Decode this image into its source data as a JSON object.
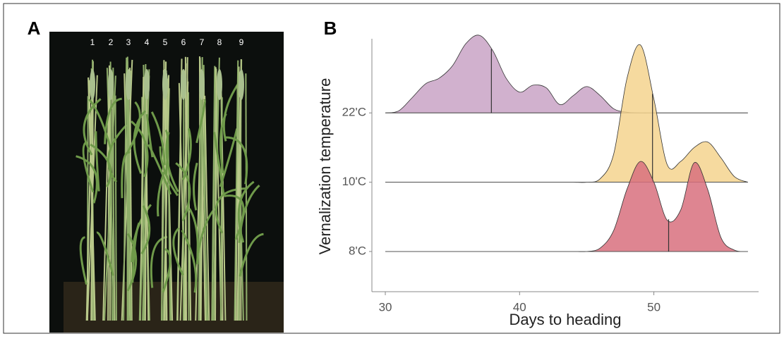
{
  "panel_a": {
    "label": "A",
    "plant_labels": [
      "1",
      "2",
      "3",
      "4",
      "5",
      "6",
      "7",
      "8",
      "9"
    ]
  },
  "chart_data": {
    "type": "ridgeline",
    "label": "B",
    "x_label": "Days to heading",
    "y_label": "Vernalization temperature",
    "x": [
      30,
      31,
      32,
      33,
      34,
      35,
      36,
      37,
      38,
      39,
      40,
      41,
      42,
      43,
      44,
      45,
      46,
      47,
      48,
      49,
      50,
      51,
      52,
      53,
      54,
      55,
      56,
      57
    ],
    "series": [
      {
        "name": "22'C",
        "color": "#c9a3c6",
        "median": 37.9,
        "values": [
          0,
          0.03,
          0.22,
          0.42,
          0.5,
          0.68,
          1.0,
          1.12,
          0.9,
          0.5,
          0.3,
          0.4,
          0.36,
          0.12,
          0.25,
          0.38,
          0.25,
          0.06,
          0.01,
          0,
          0,
          0,
          0,
          0,
          0,
          0,
          0,
          0
        ]
      },
      {
        "name": "10'C",
        "color": "#f5d38e",
        "median": 49.9,
        "values": [
          0,
          0,
          0,
          0,
          0,
          0,
          0,
          0,
          0,
          0,
          0,
          0,
          0,
          0,
          0,
          0,
          0.05,
          0.4,
          1.5,
          1.98,
          1.2,
          0.25,
          0.3,
          0.5,
          0.58,
          0.35,
          0.08,
          0
        ]
      },
      {
        "name": "8'C",
        "color": "#d8707e",
        "median": 51.1,
        "values": [
          0,
          0,
          0,
          0,
          0,
          0,
          0,
          0,
          0,
          0,
          0,
          0,
          0,
          0,
          0,
          0,
          0.05,
          0.3,
          0.9,
          1.3,
          1.0,
          0.45,
          0.6,
          1.28,
          0.9,
          0.2,
          0.02,
          0
        ]
      }
    ],
    "xlim": [
      29,
      57.8
    ],
    "xticks": [
      30,
      40,
      50
    ],
    "ylim": [
      -0.58,
      3.07
    ],
    "grid": false
  }
}
